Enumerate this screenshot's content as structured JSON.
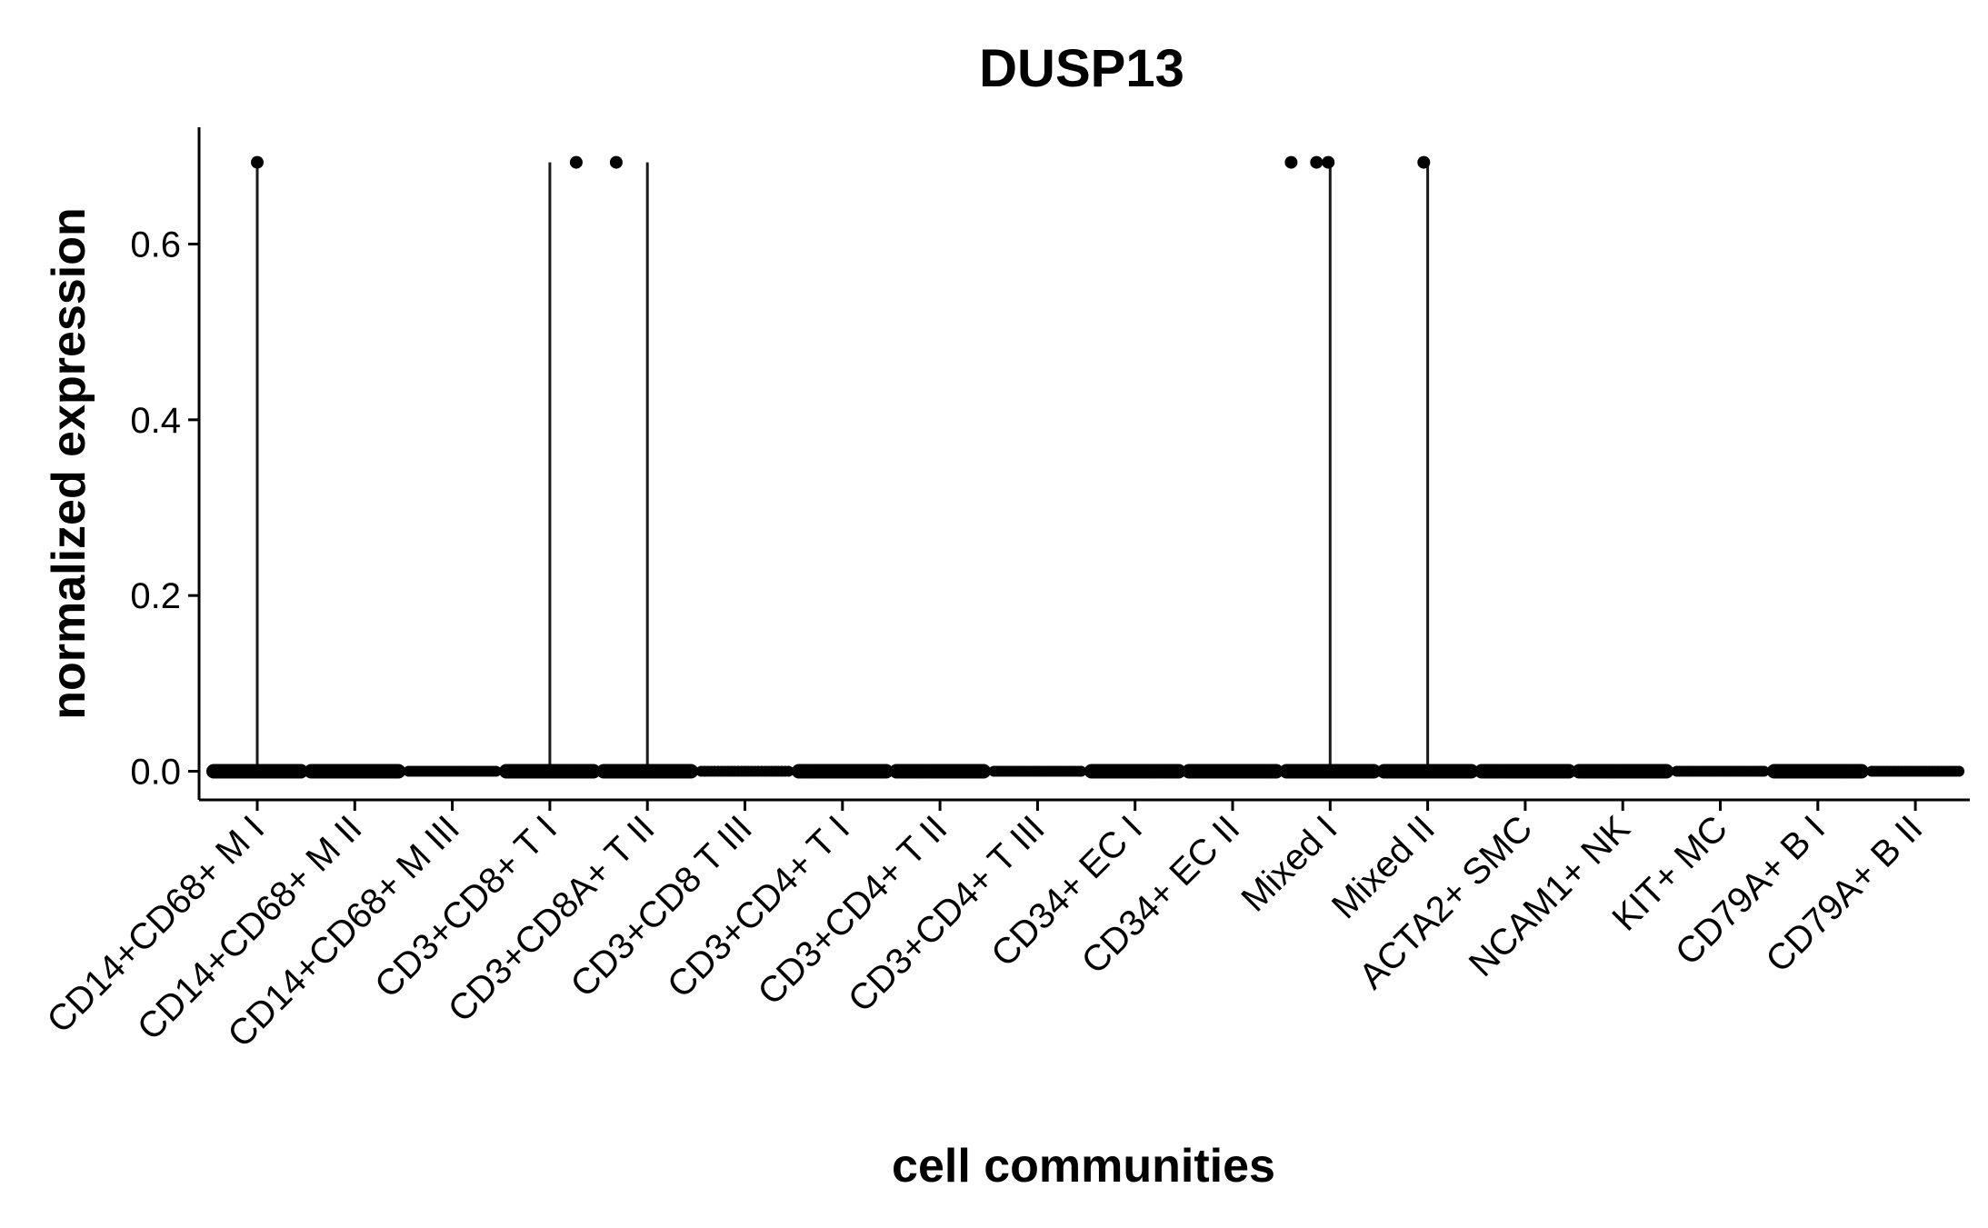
{
  "chart_data": {
    "type": "scatter",
    "subtype": "violin-jitter",
    "title": "DUSP13",
    "xlabel": "cell communities",
    "ylabel": "normalized expression",
    "ylim": [
      -0.035,
      0.725
    ],
    "yticks": [
      0.0,
      0.2,
      0.4,
      0.6
    ],
    "ytick_labels": [
      "0.0",
      "0.2",
      "0.4",
      "0.6"
    ],
    "categories": [
      "CD14+CD68+ M I",
      "CD14+CD68+ M II",
      "CD14+CD68+ M III",
      "CD3+CD8+ T I",
      "CD3+CD8A+ T II",
      "CD3+CD8 T III",
      "CD3+CD4+ T I",
      "CD3+CD4+ T II",
      "CD3+CD4+ T III",
      "CD34+ EC I",
      "CD34+ EC II",
      "Mixed I",
      "Mixed II",
      "ACTA2+ SMC",
      "NCAM1+ NK",
      "KIT+ MC",
      "CD79A+ B I",
      "CD79A+ B II"
    ],
    "baseline_value": 0.0,
    "nonzero_points": [
      {
        "category": "CD14+CD68+ M I",
        "offset": 0.0,
        "y": 0.693
      },
      {
        "category": "CD3+CD8+ T I",
        "offset": 0.27,
        "y": 0.693
      },
      {
        "category": "CD3+CD8A+ T II",
        "offset": -0.32,
        "y": 0.693
      },
      {
        "category": "Mixed I",
        "offset": -0.4,
        "y": 0.693
      },
      {
        "category": "Mixed I",
        "offset": -0.14,
        "y": 0.693
      },
      {
        "category": "Mixed I",
        "offset": -0.02,
        "y": 0.693
      },
      {
        "category": "Mixed II",
        "offset": -0.04,
        "y": 0.693
      }
    ],
    "whiskers": [
      {
        "category": "CD14+CD68+ M I",
        "from": 0.0,
        "to": 0.693
      },
      {
        "category": "CD3+CD8+ T I",
        "from": 0.0,
        "to": 0.693
      },
      {
        "category": "CD3+CD8A+ T II",
        "from": 0.0,
        "to": 0.693
      },
      {
        "category": "Mixed I",
        "from": 0.0,
        "to": 0.693
      },
      {
        "category": "Mixed II",
        "from": 0.0,
        "to": 0.693
      }
    ],
    "baseline_density": [
      1,
      1,
      0.55,
      1,
      1,
      0.35,
      1,
      1,
      0.6,
      1,
      1,
      1,
      1,
      1,
      1,
      0.6,
      1,
      0.5
    ],
    "colors": {
      "points": "#000000",
      "lines": "#1a1a1a",
      "axes": "#000000",
      "background": "#ffffff"
    }
  }
}
